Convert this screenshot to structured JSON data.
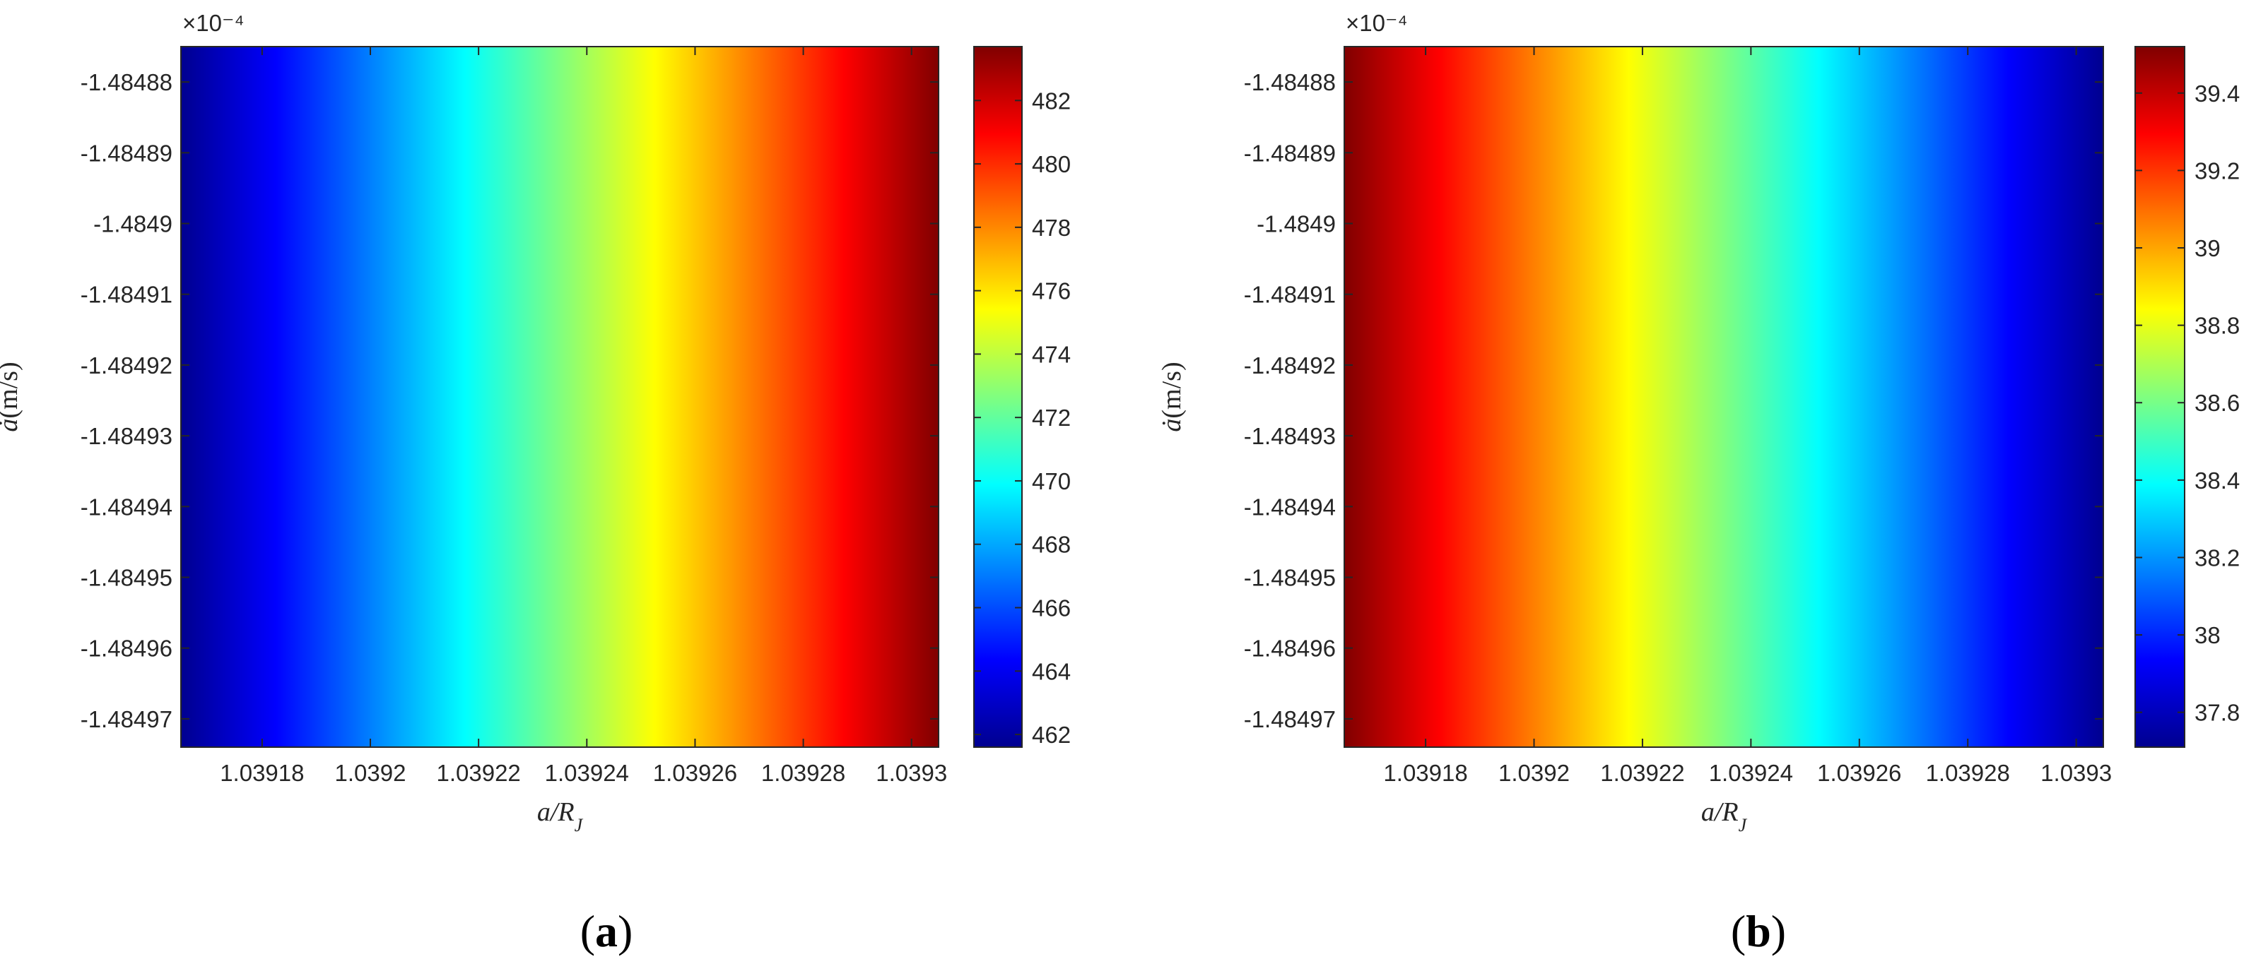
{
  "colormap": "jet",
  "chart_data": [
    {
      "type": "heatmap",
      "panel_label": "(a)",
      "panel_letter": "a",
      "xlabel": "a/R_J",
      "ylabel": "ȧ(m/s)",
      "y_exponent": "×10⁻⁴",
      "xlim": [
        1.039165,
        1.039305
      ],
      "ylim": [
        -1.484974,
        -1.484875
      ],
      "x_ticks": [
        1.03918,
        1.0392,
        1.03922,
        1.03924,
        1.03926,
        1.03928,
        1.0393
      ],
      "x_tick_labels": [
        "1.03918",
        "1.0392",
        "1.03922",
        "1.03924",
        "1.03926",
        "1.03928",
        "1.0393"
      ],
      "y_ticks": [
        -1.48488,
        -1.48489,
        -1.4849,
        -1.48491,
        -1.48492,
        -1.48493,
        -1.48494,
        -1.48495,
        -1.48496,
        -1.48497
      ],
      "y_tick_labels": [
        "-1.48488",
        "-1.48489",
        "-1.4849",
        "-1.48491",
        "-1.48492",
        "-1.48493",
        "-1.48494",
        "-1.48495",
        "-1.48496",
        "-1.48497"
      ],
      "value_gradient": "linear in x, constant in y",
      "value_at_xmin": 461.6,
      "value_at_xmax": 483.7,
      "clim": [
        461.6,
        483.7
      ],
      "colorbar_ticks": [
        462,
        464,
        466,
        468,
        470,
        472,
        474,
        476,
        478,
        480,
        482
      ],
      "colorbar_tick_labels": [
        "462",
        "464",
        "466",
        "468",
        "470",
        "472",
        "474",
        "476",
        "478",
        "480",
        "482"
      ]
    },
    {
      "type": "heatmap",
      "panel_label": "(b)",
      "panel_letter": "b",
      "xlabel": "a/R_J",
      "ylabel": "ȧ(m/s)",
      "y_exponent": "×10⁻⁴",
      "xlim": [
        1.039165,
        1.039305
      ],
      "ylim": [
        -1.484974,
        -1.484875
      ],
      "x_ticks": [
        1.03918,
        1.0392,
        1.03922,
        1.03924,
        1.03926,
        1.03928,
        1.0393
      ],
      "x_tick_labels": [
        "1.03918",
        "1.0392",
        "1.03922",
        "1.03924",
        "1.03926",
        "1.03928",
        "1.0393"
      ],
      "y_ticks": [
        -1.48488,
        -1.48489,
        -1.4849,
        -1.48491,
        -1.48492,
        -1.48493,
        -1.48494,
        -1.48495,
        -1.48496,
        -1.48497
      ],
      "y_tick_labels": [
        "-1.48488",
        "-1.48489",
        "-1.4849",
        "-1.48491",
        "-1.48492",
        "-1.48493",
        "-1.48494",
        "-1.48495",
        "-1.48496",
        "-1.48497"
      ],
      "value_gradient": "linear in x, constant in y",
      "value_at_xmin": 39.52,
      "value_at_xmax": 37.71,
      "clim": [
        37.71,
        39.52
      ],
      "colorbar_ticks": [
        37.8,
        38,
        38.2,
        38.4,
        38.6,
        38.8,
        39,
        39.2,
        39.4
      ],
      "colorbar_tick_labels": [
        "37.8",
        "38",
        "38.2",
        "38.4",
        "38.6",
        "38.8",
        "39",
        "39.2",
        "39.4"
      ]
    }
  ]
}
